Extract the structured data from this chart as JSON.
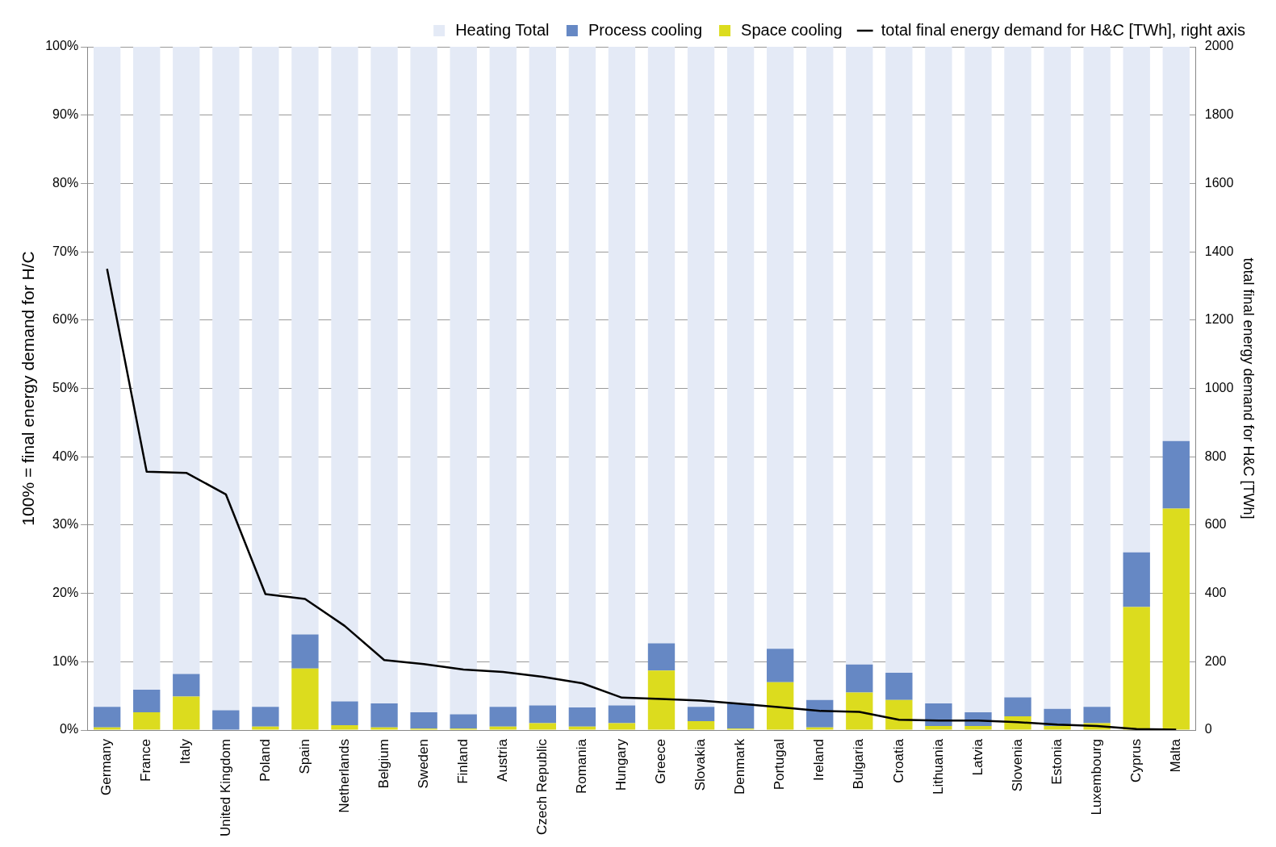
{
  "chart_data": {
    "type": "bar",
    "stacked": true,
    "ylabel": "100% = final energy demand for H/C",
    "y2label": "total final energy demand for H&C [TWh]",
    "categories": [
      "Germany",
      "France",
      "Italy",
      "United Kingdom",
      "Poland",
      "Spain",
      "Netherlands",
      "Belgium",
      "Sweden",
      "Finland",
      "Austria",
      "Czech Republic",
      "Romania",
      "Hungary",
      "Greece",
      "Slovakia",
      "Denmark",
      "Portugal",
      "Ireland",
      "Bulgaria",
      "Croatia",
      "Lithuania",
      "Latvia",
      "Slovenia",
      "Estonia",
      "Luxembourg",
      "Cyprus",
      "Malta"
    ],
    "series": [
      {
        "name": "Space cooling",
        "color": "#dcdc1e",
        "values": [
          0.4,
          2.6,
          4.9,
          0,
          0.5,
          9.0,
          0.7,
          0.4,
          0.2,
          0.2,
          0.5,
          1.0,
          0.5,
          1.0,
          8.7,
          1.3,
          0.2,
          7.0,
          0.4,
          5.5,
          4.4,
          0.6,
          0.6,
          2.0,
          0.6,
          1.0,
          18.0,
          32.4
        ]
      },
      {
        "name": "Process cooling",
        "color": "#6688c4",
        "values": [
          3.0,
          3.3,
          3.3,
          2.9,
          2.9,
          5.0,
          3.5,
          3.5,
          2.4,
          2.1,
          2.9,
          2.6,
          2.8,
          2.6,
          4.0,
          2.1,
          3.7,
          4.9,
          4.0,
          4.1,
          4.0,
          3.3,
          2.0,
          2.8,
          2.5,
          2.4,
          8.0,
          9.9
        ]
      },
      {
        "name": "Heating Total",
        "color": "#e4eaf6",
        "values": [
          96.6,
          94.1,
          91.8,
          97.1,
          96.6,
          86.0,
          95.8,
          96.1,
          97.4,
          97.7,
          96.6,
          96.4,
          96.7,
          96.4,
          87.3,
          96.6,
          96.1,
          88.1,
          95.6,
          90.4,
          91.6,
          96.1,
          97.4,
          95.2,
          96.9,
          96.6,
          74.0,
          57.7
        ]
      },
      {
        "name": "total final energy demand for H&C [TWh], right axis",
        "type": "line",
        "axis": "y2",
        "color": "#000000",
        "marker": "none",
        "values": [
          1350,
          756,
          753,
          690,
          398,
          384,
          305,
          205,
          193,
          177,
          170,
          156,
          137,
          95,
          91,
          86,
          77,
          67,
          56,
          53,
          30,
          28,
          28,
          23,
          16,
          12,
          3,
          1
        ]
      }
    ],
    "ylim": [
      0,
      100
    ],
    "yticks": [
      {
        "value": 0,
        "label": "0%"
      },
      {
        "value": 10,
        "label": "10%"
      },
      {
        "value": 20,
        "label": "20%"
      },
      {
        "value": 30,
        "label": "30%"
      },
      {
        "value": 40,
        "label": "40%"
      },
      {
        "value": 50,
        "label": "50%"
      },
      {
        "value": 60,
        "label": "60%"
      },
      {
        "value": 70,
        "label": "70%"
      },
      {
        "value": 80,
        "label": "80%"
      },
      {
        "value": 90,
        "label": "90%"
      },
      {
        "value": 100,
        "label": "100%"
      }
    ],
    "y2lim": [
      0,
      2000
    ],
    "y2ticks": [
      0,
      200,
      400,
      600,
      800,
      1000,
      1200,
      1400,
      1600,
      1800,
      2000
    ],
    "grid": "y",
    "legend": "top right"
  }
}
